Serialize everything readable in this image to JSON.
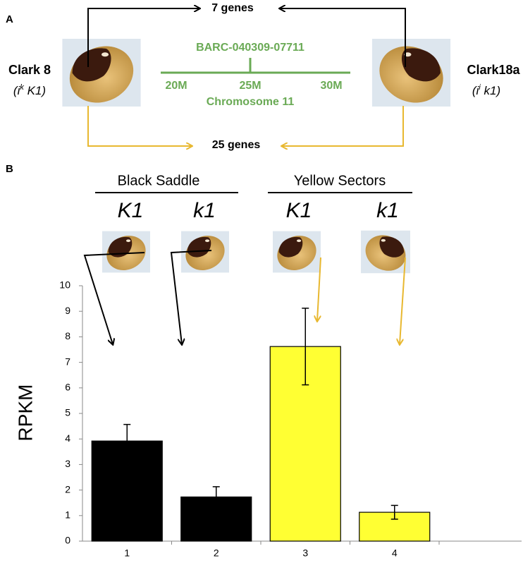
{
  "panel_a": {
    "label": "A",
    "top_label": "7 genes",
    "bottom_label": "25 genes",
    "left": {
      "name": "Clark 8",
      "genotype": [
        "(i",
        "k",
        " K1)"
      ]
    },
    "right": {
      "name": "Clark18a",
      "genotype": [
        "(i",
        "i",
        " k1)"
      ]
    },
    "marker": "BARC-040309-07711",
    "positions": [
      "20M",
      "25M",
      "30M"
    ],
    "chromosome": "Chromosome 11"
  },
  "panel_b": {
    "label": "B",
    "groups": [
      "Black Saddle",
      "Yellow Sectors"
    ],
    "alleles": [
      "K1",
      "k1",
      "K1",
      "k1"
    ]
  },
  "chart_data": {
    "type": "bar",
    "ylabel": "RPKM",
    "categories": [
      "1",
      "2",
      "3",
      "4"
    ],
    "values": [
      3.92,
      1.73,
      7.62,
      1.13
    ],
    "errors": [
      0.65,
      0.4,
      1.5,
      0.27
    ],
    "colors": [
      "#000000",
      "#000000",
      "#ffff33",
      "#ffff33"
    ],
    "ylim": [
      0,
      10
    ],
    "yticks": [
      0,
      1,
      2,
      3,
      4,
      5,
      6,
      7,
      8,
      9,
      10
    ]
  }
}
